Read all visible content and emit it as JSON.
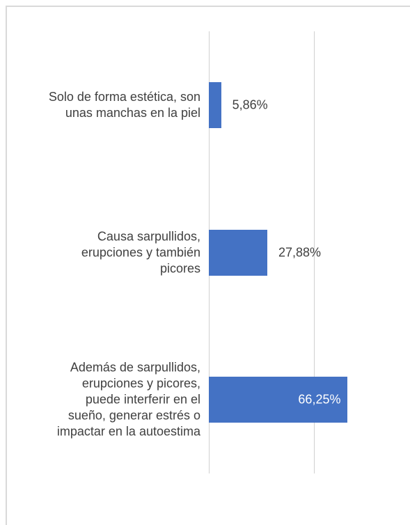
{
  "chart_data": {
    "type": "bar",
    "orientation": "horizontal",
    "categories": [
      "Solo de forma estética, son\nunas manchas en la piel",
      "Causa sarpullidos,\nerupciones y también\npicores",
      "Además de sarpullidos,\nerupciones y picores,\npuede interferir en el\nsueño, generar estrés o\nimpactar en la autoestima"
    ],
    "values": [
      5.86,
      27.88,
      66.25
    ],
    "value_labels": [
      "5,86%",
      "27,88%",
      "66,25%"
    ],
    "color": "#4472c4",
    "xlim": [
      0,
      90
    ],
    "xticks": [
      0,
      50
    ],
    "grid": true
  }
}
